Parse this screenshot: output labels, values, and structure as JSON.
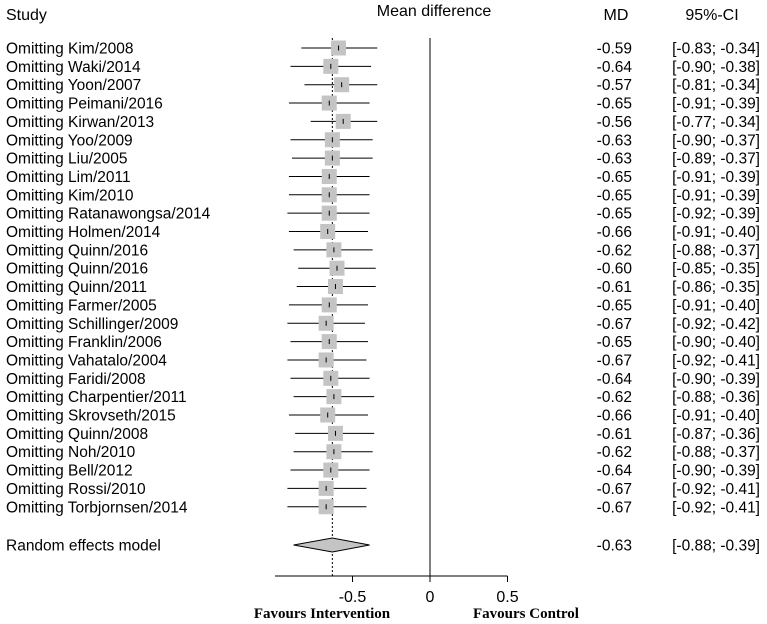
{
  "headers": {
    "study": "Study",
    "effect": "Mean difference",
    "md": "MD",
    "ci": "95%-CI"
  },
  "chart_data": {
    "type": "forest",
    "xlim": [
      -1.0,
      0.5
    ],
    "x_ticks": [
      {
        "value": -0.5,
        "label": "-0.5"
      },
      {
        "value": 0,
        "label": "0"
      },
      {
        "value": 0.5,
        "label": "0.5"
      }
    ],
    "reference_line": 0,
    "summary_line": -0.63,
    "favour_left": "Favours Intervention",
    "favour_right": "Favours Control",
    "studies": [
      {
        "label": "Omitting Kim/2008",
        "md": -0.59,
        "lower": -0.83,
        "upper": -0.34,
        "md_text": "-0.59",
        "ci_text": "[-0.83; -0.34]"
      },
      {
        "label": "Omitting Waki/2014",
        "md": -0.64,
        "lower": -0.9,
        "upper": -0.38,
        "md_text": "-0.64",
        "ci_text": "[-0.90; -0.38]"
      },
      {
        "label": "Omitting Yoon/2007",
        "md": -0.57,
        "lower": -0.81,
        "upper": -0.34,
        "md_text": "-0.57",
        "ci_text": "[-0.81; -0.34]"
      },
      {
        "label": "Omitting Peimani/2016",
        "md": -0.65,
        "lower": -0.91,
        "upper": -0.39,
        "md_text": "-0.65",
        "ci_text": "[-0.91; -0.39]"
      },
      {
        "label": "Omitting Kirwan/2013",
        "md": -0.56,
        "lower": -0.77,
        "upper": -0.34,
        "md_text": "-0.56",
        "ci_text": "[-0.77; -0.34]"
      },
      {
        "label": "Omitting Yoo/2009",
        "md": -0.63,
        "lower": -0.9,
        "upper": -0.37,
        "md_text": "-0.63",
        "ci_text": "[-0.90; -0.37]"
      },
      {
        "label": "Omitting Liu/2005",
        "md": -0.63,
        "lower": -0.89,
        "upper": -0.37,
        "md_text": "-0.63",
        "ci_text": "[-0.89; -0.37]"
      },
      {
        "label": "Omitting Lim/2011",
        "md": -0.65,
        "lower": -0.91,
        "upper": -0.39,
        "md_text": "-0.65",
        "ci_text": "[-0.91; -0.39]"
      },
      {
        "label": "Omitting Kim/2010",
        "md": -0.65,
        "lower": -0.91,
        "upper": -0.39,
        "md_text": "-0.65",
        "ci_text": "[-0.91; -0.39]"
      },
      {
        "label": "Omitting Ratanawongsa/2014",
        "md": -0.65,
        "lower": -0.92,
        "upper": -0.39,
        "md_text": "-0.65",
        "ci_text": "[-0.92; -0.39]"
      },
      {
        "label": "Omitting Holmen/2014",
        "md": -0.66,
        "lower": -0.91,
        "upper": -0.4,
        "md_text": "-0.66",
        "ci_text": "[-0.91; -0.40]"
      },
      {
        "label": "Omitting Quinn/2016",
        "md": -0.62,
        "lower": -0.88,
        "upper": -0.37,
        "md_text": "-0.62",
        "ci_text": "[-0.88; -0.37]"
      },
      {
        "label": "Omitting Quinn/2016",
        "md": -0.6,
        "lower": -0.85,
        "upper": -0.35,
        "md_text": "-0.60",
        "ci_text": "[-0.85; -0.35]"
      },
      {
        "label": "Omitting Quinn/2011",
        "md": -0.61,
        "lower": -0.86,
        "upper": -0.35,
        "md_text": "-0.61",
        "ci_text": "[-0.86; -0.35]"
      },
      {
        "label": "Omitting Farmer/2005",
        "md": -0.65,
        "lower": -0.91,
        "upper": -0.4,
        "md_text": "-0.65",
        "ci_text": "[-0.91; -0.40]"
      },
      {
        "label": "Omitting Schillinger/2009",
        "md": -0.67,
        "lower": -0.92,
        "upper": -0.42,
        "md_text": "-0.67",
        "ci_text": "[-0.92; -0.42]"
      },
      {
        "label": "Omitting Franklin/2006",
        "md": -0.65,
        "lower": -0.9,
        "upper": -0.4,
        "md_text": "-0.65",
        "ci_text": "[-0.90; -0.40]"
      },
      {
        "label": "Omitting Vahatalo/2004",
        "md": -0.67,
        "lower": -0.92,
        "upper": -0.41,
        "md_text": "-0.67",
        "ci_text": "[-0.92; -0.41]"
      },
      {
        "label": "Omitting Faridi/2008",
        "md": -0.64,
        "lower": -0.9,
        "upper": -0.39,
        "md_text": "-0.64",
        "ci_text": "[-0.90; -0.39]"
      },
      {
        "label": "Omitting Charpentier/2011",
        "md": -0.62,
        "lower": -0.88,
        "upper": -0.36,
        "md_text": "-0.62",
        "ci_text": "[-0.88; -0.36]"
      },
      {
        "label": "Omitting Skrovseth/2015",
        "md": -0.66,
        "lower": -0.91,
        "upper": -0.4,
        "md_text": "-0.66",
        "ci_text": "[-0.91; -0.40]"
      },
      {
        "label": "Omitting Quinn/2008",
        "md": -0.61,
        "lower": -0.87,
        "upper": -0.36,
        "md_text": "-0.61",
        "ci_text": "[-0.87; -0.36]"
      },
      {
        "label": "Omitting Noh/2010",
        "md": -0.62,
        "lower": -0.88,
        "upper": -0.37,
        "md_text": "-0.62",
        "ci_text": "[-0.88; -0.37]"
      },
      {
        "label": "Omitting Bell/2012",
        "md": -0.64,
        "lower": -0.9,
        "upper": -0.39,
        "md_text": "-0.64",
        "ci_text": "[-0.90; -0.39]"
      },
      {
        "label": "Omitting Rossi/2010",
        "md": -0.67,
        "lower": -0.92,
        "upper": -0.41,
        "md_text": "-0.67",
        "ci_text": "[-0.92; -0.41]"
      },
      {
        "label": "Omitting Torbjornsen/2014",
        "md": -0.67,
        "lower": -0.92,
        "upper": -0.41,
        "md_text": "-0.67",
        "ci_text": "[-0.92; -0.41]"
      }
    ],
    "pooled": {
      "label": "Random effects model",
      "md": -0.63,
      "lower": -0.88,
      "upper": -0.39,
      "md_text": "-0.63",
      "ci_text": "[-0.88; -0.39]"
    },
    "colors": {
      "box": "#c4c4c4",
      "line": "#000000",
      "diamond": "#c4c4c4"
    }
  }
}
